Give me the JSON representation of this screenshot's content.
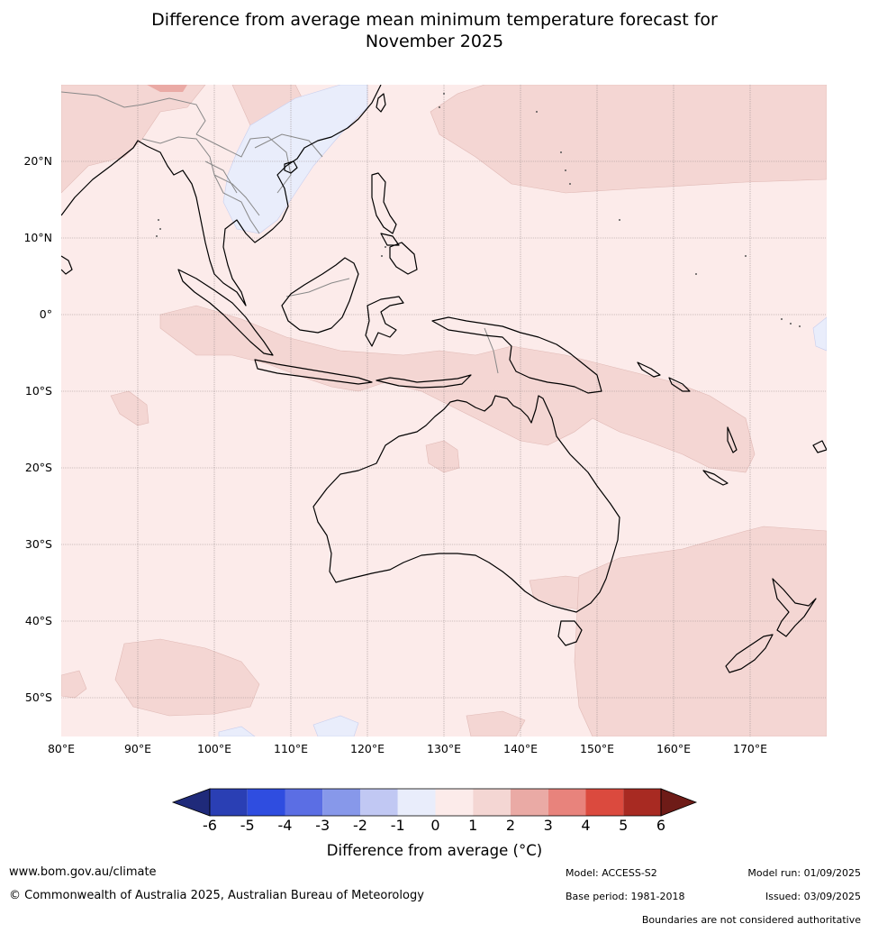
{
  "title_line1": "Difference from average mean minimum temperature forecast for",
  "title_line2": "November 2025",
  "map": {
    "lon_range": [
      80,
      180
    ],
    "lat_range": [
      -55,
      30
    ],
    "lat_labels": [
      "20°N",
      "10°N",
      "0°",
      "10°S",
      "20°S",
      "30°S",
      "40°S",
      "50°S"
    ],
    "lon_labels": [
      "80°E",
      "90°E",
      "100°E",
      "110°E",
      "120°E",
      "130°E",
      "140°E",
      "150°E",
      "160°E",
      "170°E"
    ],
    "colors": {
      "anomaly_0_1": "#fcebea",
      "anomaly_1_2": "#f4d6d3",
      "anomaly_2_3": "#eaaaa5",
      "anomaly_neg1_0": "#e9edfb",
      "coastline": "#000000",
      "borders": "#888888",
      "grid": "#9a8e8e"
    }
  },
  "colorbar": {
    "ticks": [
      "-6",
      "-5",
      "-4",
      "-3",
      "-2",
      "-1",
      "0",
      "1",
      "2",
      "3",
      "4",
      "5",
      "6"
    ],
    "colors": [
      "#1f2a7a",
      "#2a3fb4",
      "#2f4de0",
      "#5b6ee4",
      "#8798ea",
      "#c1c8f3",
      "#e9edfb",
      "#fcebea",
      "#f4d6d3",
      "#eaaaa5",
      "#e8837c",
      "#db4a3e",
      "#a82a22",
      "#6e1b17"
    ],
    "label": "Difference from average (°C)"
  },
  "footer": {
    "website": "www.bom.gov.au/climate",
    "copyright": "© Commonwealth of Australia 2025, Australian Bureau of Meteorology",
    "model": "Model: ACCESS-S2",
    "base_period": "Base period: 1981-2018",
    "model_run": "Model run: 01/09/2025",
    "issued": "Issued: 03/09/2025",
    "disclaimer": "Boundaries are not considered authoritative"
  }
}
